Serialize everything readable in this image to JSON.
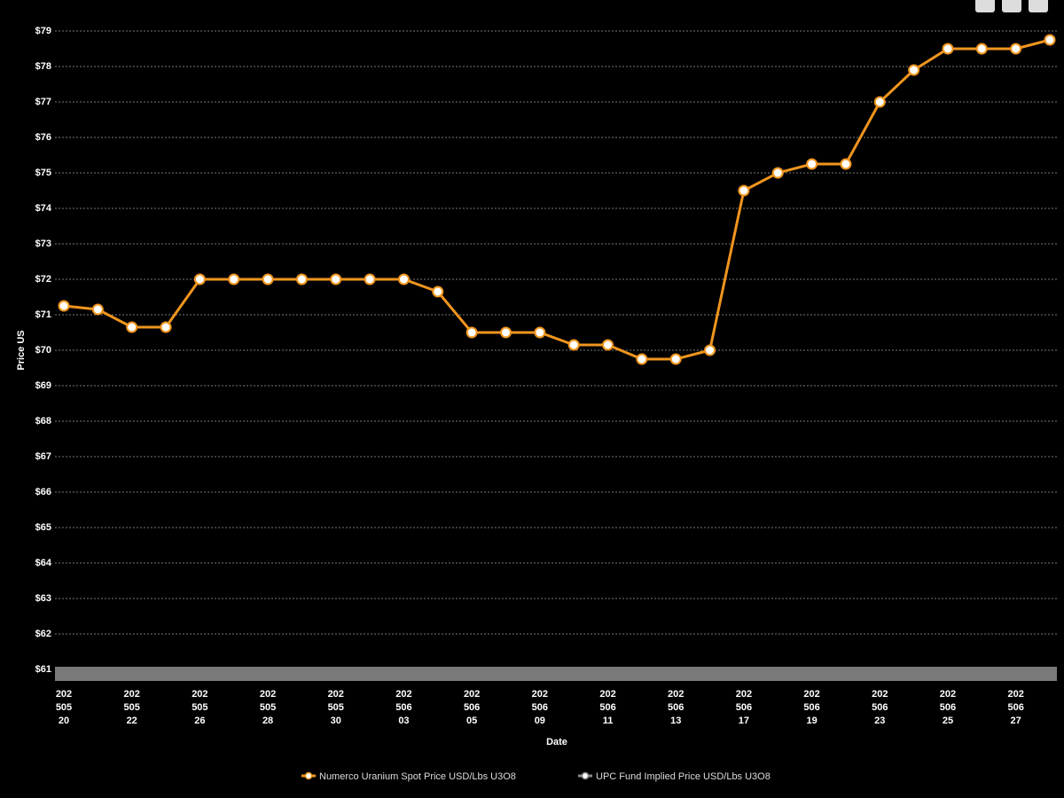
{
  "chart_data": {
    "type": "line",
    "x_label": "Date",
    "y_label": "Price US",
    "categories": [
      "20250520",
      null,
      "20250522",
      null,
      "20250526",
      null,
      "20250528",
      null,
      "20250530",
      null,
      "20250603",
      null,
      "20250605",
      null,
      "20250609",
      null,
      "20250611",
      null,
      "20250613",
      null,
      "20250617",
      null,
      "20250619",
      null,
      "20250623",
      null,
      "20250625",
      null,
      "20250627",
      null
    ],
    "series": [
      {
        "name": "Numerco Uranium Spot Price USD/Lbs U3O8",
        "color": "#f0951e",
        "values": [
          71.25,
          71.15,
          70.65,
          70.65,
          72,
          72,
          72,
          72,
          72,
          72,
          72,
          71.65,
          70.5,
          70.5,
          70.5,
          70.15,
          70.15,
          69.75,
          69.75,
          70,
          74.5,
          75,
          75.25,
          75.25,
          77,
          77.9,
          78.5,
          78.5,
          78.5,
          78.75
        ]
      },
      {
        "name": "UPC Fund Implied Price USD/Lbs U3O8",
        "color": "#8a8a8a"
      }
    ],
    "ylim": [
      61,
      79
    ],
    "yticks": [
      {
        "value": 61,
        "label": "$61"
      },
      {
        "value": 62,
        "label": "$62"
      },
      {
        "value": 63,
        "label": "$63"
      },
      {
        "value": 64,
        "label": "$64"
      },
      {
        "value": 65,
        "label": "$65"
      },
      {
        "value": 66,
        "label": "$66"
      },
      {
        "value": 67,
        "label": "$67"
      },
      {
        "value": 68,
        "label": "$68"
      },
      {
        "value": 69,
        "label": "$69"
      },
      {
        "value": 70,
        "label": "$70"
      },
      {
        "value": 71,
        "label": "$71"
      },
      {
        "value": 72,
        "label": "$72"
      },
      {
        "value": 73,
        "label": "$73"
      },
      {
        "value": 74,
        "label": "$74"
      },
      {
        "value": 75,
        "label": "$75"
      },
      {
        "value": 76,
        "label": "$76"
      },
      {
        "value": 77,
        "label": "$77"
      },
      {
        "value": 78,
        "label": "$78"
      },
      {
        "value": 79,
        "label": "$79"
      }
    ],
    "grid": true
  }
}
